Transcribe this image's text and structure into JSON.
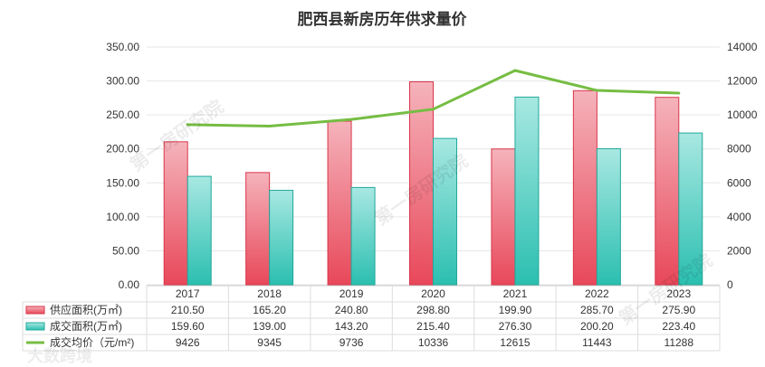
{
  "chart_data": {
    "type": "bar",
    "title": "肥西县新房历年供求量价",
    "categories": [
      "2017",
      "2018",
      "2019",
      "2020",
      "2021",
      "2022",
      "2023"
    ],
    "series": [
      {
        "name": "供应面积(万㎡)",
        "type": "bar",
        "axis": "left",
        "color": "#e8485a",
        "values": [
          210.5,
          165.2,
          240.8,
          298.8,
          199.9,
          285.7,
          275.9
        ]
      },
      {
        "name": "成交面积(万㎡)",
        "type": "bar",
        "axis": "left",
        "color": "#2bbfb0",
        "values": [
          159.6,
          139.0,
          143.2,
          215.4,
          276.3,
          200.2,
          223.4
        ]
      },
      {
        "name": "成交均价（元/m²)",
        "type": "line",
        "axis": "right",
        "color": "#76bd43",
        "values": [
          9426,
          9345,
          9736,
          10336,
          12615,
          11443,
          11288
        ]
      }
    ],
    "y_left": {
      "ylim": [
        0,
        350
      ],
      "ticks": [
        "0.00",
        "50.00",
        "100.00",
        "150.00",
        "200.00",
        "250.00",
        "300.00",
        "350.00"
      ]
    },
    "y_right": {
      "ylim": [
        0,
        14000
      ],
      "ticks": [
        "0",
        "2000",
        "4000",
        "6000",
        "8000",
        "10000",
        "12000",
        "14000"
      ]
    },
    "grid": true,
    "legend": "data-table-bottom",
    "table_values": [
      [
        "210.50",
        "165.20",
        "240.80",
        "298.80",
        "199.90",
        "285.70",
        "275.90"
      ],
      [
        "159.60",
        "139.00",
        "143.20",
        "215.40",
        "276.30",
        "200.20",
        "223.40"
      ],
      [
        "9426",
        "9345",
        "9736",
        "10336",
        "12615",
        "11443",
        "11288"
      ]
    ]
  },
  "watermarks": [
    "第一房研究院",
    "大数跨境"
  ]
}
